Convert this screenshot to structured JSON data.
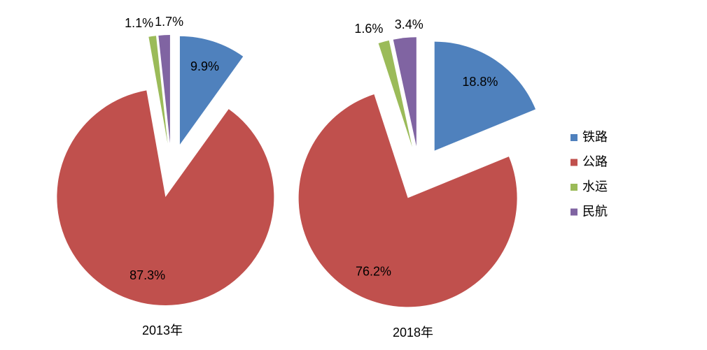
{
  "chart_data": [
    {
      "type": "pie",
      "title": "2013年",
      "categories": [
        "铁路",
        "公路",
        "水运",
        "民航"
      ],
      "values": [
        9.9,
        87.3,
        1.1,
        1.7
      ],
      "value_labels": [
        "9.9%",
        "87.3%",
        "1.1%",
        "1.7%"
      ],
      "colors": [
        "#4f81bd",
        "#c0504d",
        "#9bbb59",
        "#8064a2"
      ]
    },
    {
      "type": "pie",
      "title": "2018年",
      "categories": [
        "铁路",
        "公路",
        "水运",
        "民航"
      ],
      "values": [
        18.8,
        76.2,
        1.6,
        3.4
      ],
      "value_labels": [
        "18.8%",
        "76.2%",
        "1.6%",
        "3.4%"
      ],
      "colors": [
        "#4f81bd",
        "#c0504d",
        "#9bbb59",
        "#8064a2"
      ],
      "legend": "right"
    }
  ]
}
